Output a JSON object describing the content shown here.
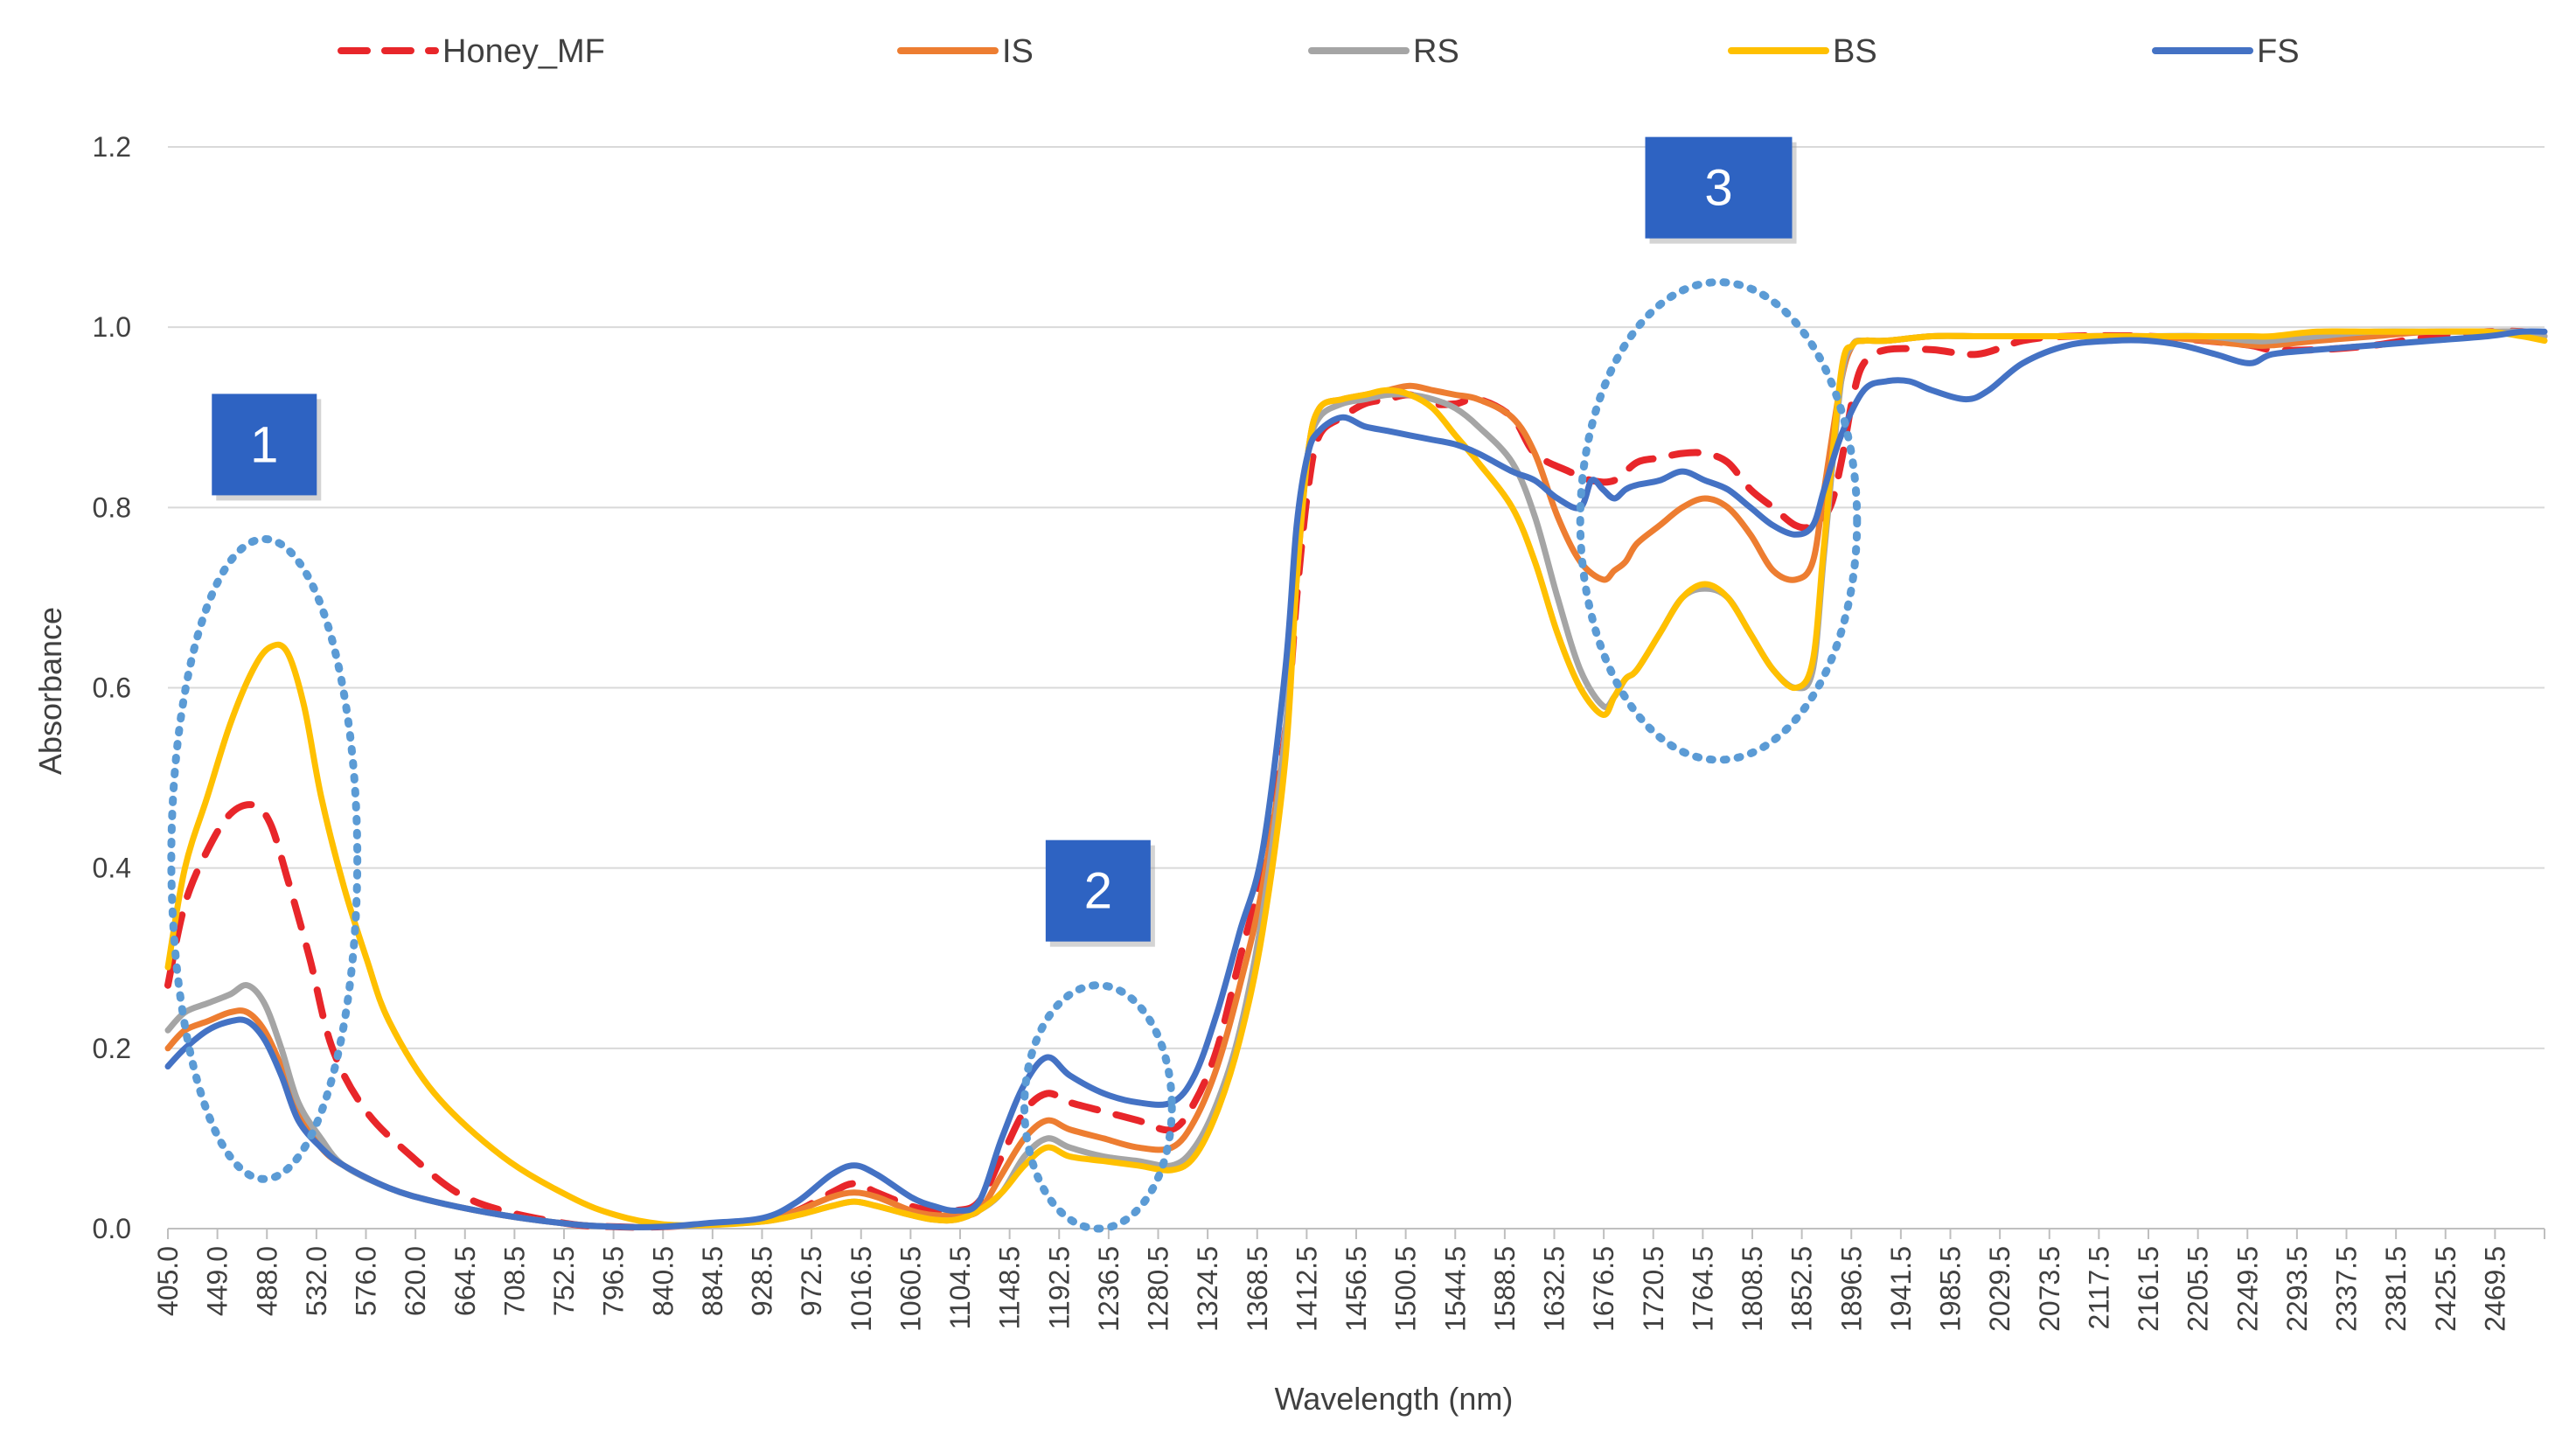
{
  "chart_data": {
    "type": "line",
    "title": "",
    "xlabel": "Wavelength (nm)",
    "ylabel": "Absorbance",
    "ylim": [
      0,
      1.2
    ],
    "yticks": [
      "0.0",
      "0.2",
      "0.4",
      "0.6",
      "0.8",
      "1.0",
      "1.2"
    ],
    "xlim": [
      405,
      2500
    ],
    "xticks": [
      "405.0",
      "449.0",
      "488.0",
      "532.0",
      "576.0",
      "620.0",
      "664.5",
      "708.5",
      "752.5",
      "796.5",
      "840.5",
      "884.5",
      "928.5",
      "972.5",
      "1016.5",
      "1060.5",
      "1104.5",
      "1148.5",
      "1192.5",
      "1236.5",
      "1280.5",
      "1324.5",
      "1368.5",
      "1412.5",
      "1456.5",
      "1500.5",
      "1544.5",
      "1588.5",
      "1632.5",
      "1676.5",
      "1720.5",
      "1764.5",
      "1808.5",
      "1852.5",
      "1896.5",
      "1941.5",
      "1985.5",
      "2029.5",
      "2073.5",
      "2117.5",
      "2161.5",
      "2205.5",
      "2249.5",
      "2293.5",
      "2337.5",
      "2381.5",
      "2425.5",
      "2469.5"
    ],
    "grid": true,
    "legend_position": "top",
    "series": [
      {
        "name": "Honey_MF",
        "color": "#E8262A",
        "dash": true,
        "x": [
          405,
          420,
          440,
          460,
          480,
          495,
          510,
          530,
          550,
          580,
          620,
          660,
          700,
          760,
          800,
          840,
          880,
          930,
          960,
          990,
          1010,
          1030,
          1060,
          1080,
          1100,
          1120,
          1140,
          1160,
          1180,
          1200,
          1230,
          1260,
          1290,
          1310,
          1330,
          1350,
          1370,
          1390,
          1400,
          1410,
          1420,
          1440,
          1460,
          1480,
          1500,
          1520,
          1540,
          1560,
          1590,
          1610,
          1640,
          1660,
          1680,
          1700,
          1720,
          1740,
          1760,
          1780,
          1800,
          1820,
          1840,
          1855,
          1870,
          1880,
          1890,
          1900,
          1920,
          1960,
          2000,
          2040,
          2080,
          2150,
          2200,
          2240,
          2260,
          2300,
          2350,
          2400,
          2450,
          2480,
          2500
        ],
        "y": [
          0.27,
          0.36,
          0.42,
          0.46,
          0.47,
          0.45,
          0.39,
          0.3,
          0.2,
          0.13,
          0.08,
          0.04,
          0.02,
          0.005,
          0.002,
          0.002,
          0.005,
          0.01,
          0.02,
          0.04,
          0.05,
          0.04,
          0.025,
          0.02,
          0.02,
          0.03,
          0.08,
          0.13,
          0.15,
          0.14,
          0.13,
          0.12,
          0.11,
          0.14,
          0.2,
          0.3,
          0.4,
          0.55,
          0.7,
          0.82,
          0.88,
          0.9,
          0.915,
          0.92,
          0.925,
          0.915,
          0.915,
          0.92,
          0.9,
          0.86,
          0.84,
          0.83,
          0.83,
          0.85,
          0.855,
          0.86,
          0.86,
          0.85,
          0.82,
          0.8,
          0.78,
          0.78,
          0.8,
          0.85,
          0.92,
          0.96,
          0.975,
          0.975,
          0.97,
          0.985,
          0.99,
          0.99,
          0.985,
          0.98,
          0.975,
          0.975,
          0.98,
          0.99,
          0.995,
          0.995,
          0.99
        ]
      },
      {
        "name": "IS",
        "color": "#ED7D31",
        "dash": false,
        "x": [
          405,
          420,
          440,
          460,
          475,
          490,
          505,
          520,
          540,
          560,
          600,
          640,
          700,
          760,
          800,
          840,
          880,
          930,
          960,
          990,
          1010,
          1030,
          1060,
          1080,
          1100,
          1120,
          1140,
          1160,
          1180,
          1200,
          1230,
          1260,
          1290,
          1310,
          1330,
          1350,
          1370,
          1390,
          1400,
          1410,
          1420,
          1440,
          1460,
          1480,
          1500,
          1520,
          1540,
          1560,
          1590,
          1610,
          1630,
          1650,
          1670,
          1680,
          1690,
          1700,
          1720,
          1740,
          1760,
          1780,
          1800,
          1820,
          1840,
          1855,
          1865,
          1880,
          1890,
          1900,
          1920,
          1960,
          2000,
          2040,
          2080,
          2150,
          2200,
          2240,
          2260,
          2300,
          2350,
          2400,
          2450,
          2480,
          2500
        ],
        "y": [
          0.2,
          0.22,
          0.23,
          0.24,
          0.24,
          0.22,
          0.18,
          0.13,
          0.09,
          0.07,
          0.045,
          0.03,
          0.015,
          0.005,
          0.002,
          0.002,
          0.005,
          0.01,
          0.02,
          0.035,
          0.04,
          0.035,
          0.02,
          0.015,
          0.015,
          0.02,
          0.06,
          0.1,
          0.12,
          0.11,
          0.1,
          0.09,
          0.09,
          0.12,
          0.18,
          0.27,
          0.38,
          0.55,
          0.72,
          0.86,
          0.91,
          0.92,
          0.925,
          0.93,
          0.935,
          0.93,
          0.925,
          0.92,
          0.9,
          0.86,
          0.79,
          0.74,
          0.72,
          0.73,
          0.74,
          0.76,
          0.78,
          0.8,
          0.81,
          0.8,
          0.77,
          0.73,
          0.72,
          0.74,
          0.82,
          0.94,
          0.98,
          0.985,
          0.985,
          0.99,
          0.99,
          0.99,
          0.99,
          0.99,
          0.985,
          0.98,
          0.98,
          0.985,
          0.99,
          0.995,
          0.995,
          0.995,
          0.99
        ]
      },
      {
        "name": "RS",
        "color": "#A5A5A5",
        "dash": false,
        "x": [
          405,
          420,
          440,
          460,
          475,
          490,
          505,
          520,
          540,
          560,
          600,
          640,
          700,
          760,
          800,
          840,
          880,
          930,
          960,
          990,
          1010,
          1030,
          1060,
          1080,
          1100,
          1120,
          1140,
          1160,
          1180,
          1200,
          1230,
          1260,
          1290,
          1310,
          1330,
          1350,
          1370,
          1390,
          1400,
          1410,
          1420,
          1440,
          1460,
          1480,
          1500,
          1520,
          1540,
          1560,
          1590,
          1610,
          1630,
          1650,
          1670,
          1680,
          1690,
          1700,
          1720,
          1740,
          1760,
          1780,
          1800,
          1820,
          1840,
          1855,
          1865,
          1880,
          1890,
          1900,
          1920,
          1960,
          2000,
          2040,
          2080,
          2150,
          2200,
          2240,
          2260,
          2300,
          2350,
          2400,
          2450,
          2480,
          2500
        ],
        "y": [
          0.22,
          0.24,
          0.25,
          0.26,
          0.27,
          0.25,
          0.2,
          0.14,
          0.1,
          0.07,
          0.045,
          0.03,
          0.015,
          0.005,
          0.002,
          0.002,
          0.004,
          0.008,
          0.015,
          0.025,
          0.03,
          0.025,
          0.015,
          0.01,
          0.01,
          0.02,
          0.04,
          0.08,
          0.1,
          0.09,
          0.08,
          0.075,
          0.07,
          0.09,
          0.14,
          0.22,
          0.35,
          0.55,
          0.74,
          0.86,
          0.9,
          0.915,
          0.92,
          0.925,
          0.925,
          0.92,
          0.91,
          0.89,
          0.85,
          0.79,
          0.7,
          0.62,
          0.58,
          0.59,
          0.61,
          0.62,
          0.66,
          0.7,
          0.71,
          0.7,
          0.66,
          0.62,
          0.6,
          0.62,
          0.75,
          0.94,
          0.98,
          0.985,
          0.985,
          0.99,
          0.99,
          0.99,
          0.99,
          0.99,
          0.99,
          0.985,
          0.985,
          0.99,
          0.995,
          0.995,
          0.995,
          0.995,
          0.99
        ]
      },
      {
        "name": "BS",
        "color": "#FFC000",
        "dash": false,
        "x": [
          405,
          420,
          440,
          460,
          480,
          495,
          510,
          525,
          540,
          560,
          580,
          600,
          640,
          700,
          760,
          800,
          840,
          880,
          930,
          960,
          990,
          1010,
          1030,
          1060,
          1080,
          1100,
          1120,
          1140,
          1160,
          1180,
          1200,
          1230,
          1260,
          1290,
          1310,
          1330,
          1350,
          1370,
          1390,
          1400,
          1410,
          1420,
          1440,
          1460,
          1480,
          1500,
          1520,
          1540,
          1560,
          1590,
          1610,
          1630,
          1650,
          1670,
          1680,
          1690,
          1700,
          1720,
          1740,
          1760,
          1780,
          1800,
          1820,
          1840,
          1855,
          1865,
          1880,
          1890,
          1900,
          1920,
          1960,
          2000,
          2040,
          2080,
          2150,
          2200,
          2240,
          2260,
          2300,
          2350,
          2400,
          2450,
          2480,
          2500
        ],
        "y": [
          0.29,
          0.4,
          0.48,
          0.56,
          0.62,
          0.645,
          0.64,
          0.58,
          0.48,
          0.38,
          0.3,
          0.23,
          0.15,
          0.08,
          0.035,
          0.015,
          0.005,
          0.004,
          0.008,
          0.015,
          0.025,
          0.03,
          0.025,
          0.015,
          0.01,
          0.01,
          0.02,
          0.04,
          0.07,
          0.09,
          0.08,
          0.075,
          0.07,
          0.065,
          0.08,
          0.13,
          0.21,
          0.33,
          0.52,
          0.72,
          0.86,
          0.91,
          0.92,
          0.925,
          0.93,
          0.925,
          0.91,
          0.88,
          0.85,
          0.8,
          0.74,
          0.66,
          0.6,
          0.57,
          0.59,
          0.61,
          0.62,
          0.66,
          0.7,
          0.715,
          0.7,
          0.66,
          0.62,
          0.6,
          0.63,
          0.76,
          0.95,
          0.98,
          0.985,
          0.985,
          0.99,
          0.99,
          0.99,
          0.99,
          0.99,
          0.99,
          0.99,
          0.99,
          0.995,
          0.995,
          0.995,
          0.995,
          0.99,
          0.985
        ]
      },
      {
        "name": "FS",
        "color": "#4472C4",
        "dash": false,
        "x": [
          405,
          420,
          440,
          460,
          475,
          490,
          505,
          520,
          540,
          560,
          600,
          640,
          700,
          760,
          800,
          840,
          880,
          930,
          960,
          990,
          1010,
          1030,
          1060,
          1080,
          1100,
          1120,
          1140,
          1160,
          1180,
          1200,
          1230,
          1260,
          1290,
          1310,
          1330,
          1350,
          1370,
          1390,
          1400,
          1410,
          1420,
          1440,
          1460,
          1480,
          1500,
          1520,
          1540,
          1560,
          1590,
          1610,
          1630,
          1650,
          1660,
          1670,
          1680,
          1690,
          1700,
          1720,
          1740,
          1760,
          1780,
          1800,
          1820,
          1840,
          1855,
          1865,
          1880,
          1900,
          1920,
          1940,
          1960,
          1990,
          2010,
          2040,
          2080,
          2120,
          2150,
          2180,
          2210,
          2240,
          2260,
          2300,
          2350,
          2400,
          2450,
          2480,
          2500
        ],
        "y": [
          0.18,
          0.2,
          0.22,
          0.23,
          0.23,
          0.21,
          0.17,
          0.12,
          0.09,
          0.07,
          0.045,
          0.03,
          0.015,
          0.005,
          0.002,
          0.002,
          0.006,
          0.012,
          0.03,
          0.06,
          0.07,
          0.06,
          0.035,
          0.025,
          0.02,
          0.03,
          0.1,
          0.16,
          0.19,
          0.17,
          0.15,
          0.14,
          0.14,
          0.17,
          0.24,
          0.33,
          0.42,
          0.62,
          0.78,
          0.86,
          0.885,
          0.9,
          0.89,
          0.885,
          0.88,
          0.875,
          0.87,
          0.86,
          0.84,
          0.83,
          0.81,
          0.8,
          0.83,
          0.82,
          0.81,
          0.82,
          0.825,
          0.83,
          0.84,
          0.83,
          0.82,
          0.8,
          0.78,
          0.77,
          0.78,
          0.82,
          0.88,
          0.93,
          0.94,
          0.94,
          0.93,
          0.92,
          0.93,
          0.96,
          0.98,
          0.985,
          0.985,
          0.98,
          0.97,
          0.96,
          0.97,
          0.975,
          0.98,
          0.985,
          0.99,
          0.995,
          0.995
        ]
      }
    ],
    "annotations": [
      {
        "label": "1",
        "x_center": 490,
        "y_center": 0.41,
        "x_radius": 82,
        "y_radius": 0.355
      },
      {
        "label": "2",
        "x_center": 1225,
        "y_center": 0.135,
        "x_radius": 65,
        "y_radius": 0.135
      },
      {
        "label": "3",
        "x_center": 1772,
        "y_center": 0.785,
        "x_radius": 122,
        "y_radius": 0.265
      }
    ]
  }
}
